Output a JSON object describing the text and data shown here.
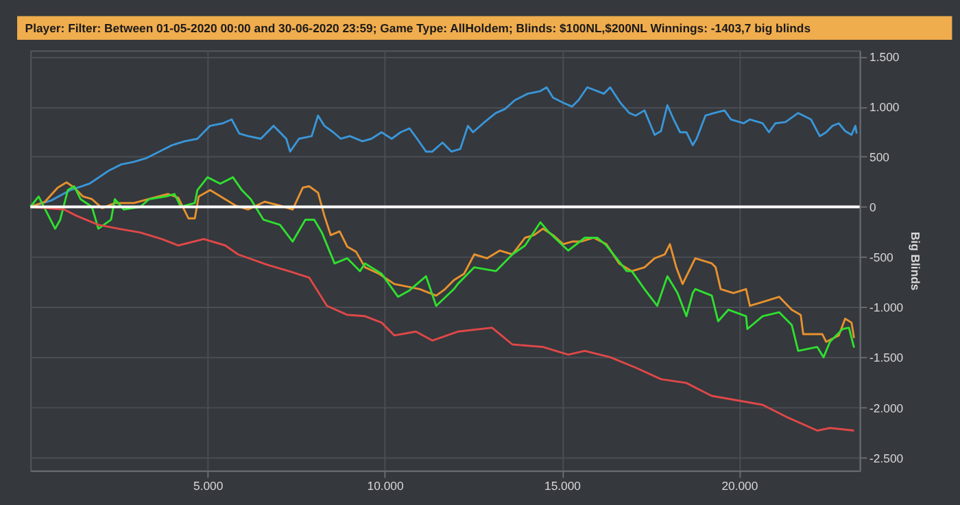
{
  "chart_data": {
    "type": "line",
    "title": "Player:  Filter: Between 01-05-2020 00:00 and 30-06-2020 23:59; Game Type: AllHoldem; Blinds: $100NL,$200NL  Winnings: -1403,7 big blinds",
    "ylabel": "Big Blinds",
    "xlim": [
      0,
      23400
    ],
    "ylim": [
      -2630,
      1560
    ],
    "xticks": [
      {
        "value": 5000,
        "label": "5.000"
      },
      {
        "value": 10000,
        "label": "10.000"
      },
      {
        "value": 15000,
        "label": "15.000"
      },
      {
        "value": 20000,
        "label": "20.000"
      }
    ],
    "yticks": [
      {
        "value": -2500,
        "label": "-2.500"
      },
      {
        "value": -2000,
        "label": "-2.000"
      },
      {
        "value": -1500,
        "label": "-1.500"
      },
      {
        "value": -1000,
        "label": "-1.000"
      },
      -500,
      0,
      500,
      {
        "value": 1000,
        "label": "1.000"
      },
      {
        "value": 1500,
        "label": "1.500"
      }
    ],
    "grid": true,
    "ref_lines": [
      {
        "axis": "y",
        "value": 0,
        "color": "#ffffff"
      }
    ],
    "series": [
      {
        "color": "#3a96d8",
        "x": [
          0,
          591,
          1129,
          1667,
          2204,
          2563,
          2921,
          3280,
          3638,
          3997,
          4355,
          4713,
          4892,
          5071,
          5429,
          5680,
          5895,
          6146,
          6504,
          6863,
          7221,
          7329,
          7579,
          7938,
          8117,
          8296,
          8547,
          8762,
          9013,
          9371,
          9622,
          9909,
          10196,
          10447,
          10698,
          10913,
          11164,
          11343,
          11630,
          11881,
          12131,
          12346,
          12490,
          12776,
          13135,
          13386,
          13673,
          14031,
          14389,
          14568,
          14748,
          15034,
          15285,
          15465,
          15715,
          16002,
          16181,
          16361,
          16648,
          16898,
          17078,
          17329,
          17616,
          17795,
          17974,
          18153,
          18333,
          18512,
          18691,
          18799,
          19050,
          19301,
          19587,
          19767,
          20125,
          20304,
          20663,
          20842,
          21021,
          21308,
          21666,
          21810,
          22025,
          22276,
          22455,
          22634,
          22813,
          22992,
          23171,
          23279,
          23315
        ],
        "values": [
          0,
          64,
          167,
          231,
          359,
          423,
          449,
          487,
          551,
          615,
          654,
          679,
          744,
          808,
          833,
          872,
          731,
          705,
          679,
          808,
          679,
          551,
          679,
          705,
          910,
          808,
          744,
          679,
          705,
          654,
          679,
          744,
          679,
          744,
          782,
          679,
          551,
          551,
          641,
          551,
          577,
          808,
          744,
          833,
          936,
          974,
          1064,
          1128,
          1154,
          1192,
          1090,
          1038,
          1000,
          1064,
          1192,
          1154,
          1128,
          1192,
          1038,
          936,
          910,
          962,
          718,
          756,
          1013,
          872,
          744,
          744,
          615,
          679,
          910,
          936,
          962,
          872,
          833,
          872,
          833,
          744,
          833,
          846,
          936,
          910,
          872,
          705,
          744,
          808,
          833,
          756,
          718,
          808,
          731
        ]
      },
      {
        "color": "#e8922e",
        "x": [
          0,
          412,
          771,
          1021,
          1237,
          1487,
          1738,
          2025,
          2383,
          2921,
          3459,
          3889,
          4175,
          4462,
          4641,
          4749,
          5071,
          5430,
          5788,
          6146,
          6612,
          7042,
          7401,
          7688,
          7867,
          8118,
          8297,
          8476,
          8727,
          8942,
          9193,
          9444,
          9838,
          10268,
          10627,
          10985,
          11451,
          11702,
          11952,
          12239,
          12526,
          12884,
          13243,
          13601,
          13960,
          14211,
          14461,
          14748,
          15035,
          15286,
          15536,
          15895,
          16253,
          16612,
          16970,
          17329,
          17616,
          17902,
          18046,
          18225,
          18404,
          18511,
          18762,
          19228,
          19336,
          19479,
          19837,
          20195,
          20303,
          20662,
          21128,
          21486,
          21737,
          21809,
          22346,
          22454,
          22812,
          22991,
          23171,
          23242
        ],
        "values": [
          0,
          51,
          192,
          244,
          192,
          103,
          77,
          -13,
          38,
          38,
          90,
          128,
          90,
          -115,
          -115,
          103,
          167,
          90,
          13,
          -26,
          51,
          13,
          -26,
          192,
          205,
          141,
          -90,
          -282,
          -244,
          -397,
          -449,
          -603,
          -667,
          -769,
          -795,
          -820,
          -885,
          -820,
          -731,
          -667,
          -474,
          -513,
          -436,
          -474,
          -308,
          -282,
          -218,
          -282,
          -372,
          -346,
          -346,
          -308,
          -372,
          -564,
          -641,
          -603,
          -513,
          -474,
          -372,
          -603,
          -769,
          -692,
          -513,
          -564,
          -603,
          -820,
          -859,
          -820,
          -987,
          -949,
          -897,
          -1026,
          -1077,
          -1269,
          -1269,
          -1346,
          -1282,
          -1115,
          -1154,
          -1308
        ]
      },
      {
        "color": "#2fe02f",
        "x": [
          0,
          233,
          699,
          842,
          1057,
          1237,
          1416,
          1738,
          1917,
          2276,
          2383,
          2634,
          3100,
          3351,
          3817,
          4068,
          4247,
          4641,
          4713,
          4999,
          5358,
          5716,
          5967,
          6218,
          6577,
          7042,
          7401,
          7759,
          8010,
          8225,
          8584,
          8942,
          9301,
          9444,
          9910,
          10376,
          10698,
          11164,
          11451,
          11952,
          12060,
          12526,
          13135,
          13601,
          13960,
          14390,
          14640,
          15178,
          15644,
          16002,
          16253,
          16827,
          16970,
          17329,
          17687,
          17974,
          18261,
          18511,
          18691,
          18762,
          19228,
          19407,
          19694,
          20195,
          20231,
          20662,
          21128,
          21486,
          21665,
          22203,
          22382,
          22561,
          22920,
          23099,
          23242
        ],
        "values": [
          0,
          103,
          -218,
          -128,
          167,
          205,
          77,
          0,
          -218,
          -128,
          77,
          -26,
          0,
          77,
          103,
          128,
          0,
          38,
          167,
          295,
          231,
          295,
          167,
          77,
          -128,
          -179,
          -346,
          -128,
          -128,
          -256,
          -564,
          -513,
          -641,
          -564,
          -667,
          -897,
          -833,
          -692,
          -987,
          -820,
          -769,
          -603,
          -641,
          -474,
          -385,
          -154,
          -256,
          -436,
          -308,
          -308,
          -385,
          -641,
          -641,
          -820,
          -987,
          -692,
          -859,
          -1090,
          -859,
          -820,
          -885,
          -1141,
          -1026,
          -1090,
          -1218,
          -1090,
          -1051,
          -1179,
          -1436,
          -1397,
          -1500,
          -1346,
          -1218,
          -1205,
          -1404
        ]
      },
      {
        "color": "#e04848",
        "x": [
          0,
          950,
          1308,
          1917,
          2491,
          3100,
          3709,
          4175,
          4892,
          5501,
          5860,
          6684,
          7293,
          7867,
          8369,
          8942,
          9444,
          9910,
          10268,
          10878,
          11343,
          12060,
          13028,
          13601,
          14461,
          15178,
          15644,
          16361,
          17078,
          17795,
          18511,
          19228,
          19837,
          20662,
          21379,
          22203,
          22561,
          23242
        ],
        "values": [
          0,
          -26,
          -90,
          -179,
          -218,
          -256,
          -321,
          -385,
          -321,
          -385,
          -474,
          -577,
          -641,
          -705,
          -987,
          -1077,
          -1090,
          -1154,
          -1282,
          -1244,
          -1333,
          -1244,
          -1205,
          -1372,
          -1397,
          -1474,
          -1436,
          -1500,
          -1603,
          -1718,
          -1756,
          -1885,
          -1923,
          -1974,
          -2102,
          -2231,
          -2205,
          -2231
        ]
      }
    ]
  }
}
